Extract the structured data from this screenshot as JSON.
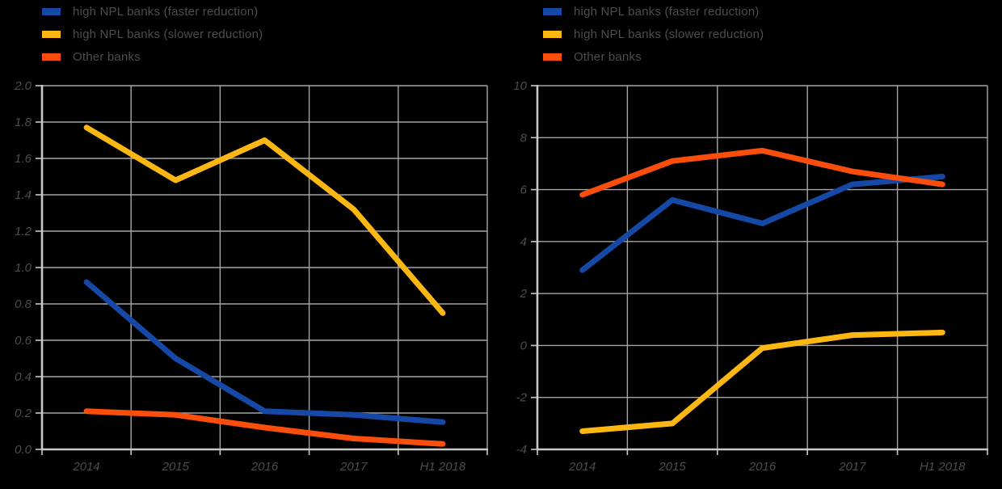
{
  "figure": {
    "background": "#000000",
    "grid_color": "#a6a6a6",
    "axis_color": "#c9c9c9",
    "text_color": "#4d4d4d"
  },
  "chart_data": [
    {
      "type": "line",
      "title": "",
      "categories": [
        "2014",
        "2015",
        "2016",
        "2017",
        "H1 2018"
      ],
      "series": [
        {
          "name": "high NPL banks (faster reduction)",
          "color": "#1649a6",
          "values": [
            0.92,
            0.5,
            0.21,
            0.19,
            0.15
          ]
        },
        {
          "name": "high NPL banks (slower reduction)",
          "color": "#fdb713",
          "values": [
            1.77,
            1.48,
            1.7,
            1.32,
            0.75
          ]
        },
        {
          "name": "Other banks",
          "color": "#fb4d0c",
          "values": [
            0.21,
            0.19,
            0.12,
            0.06,
            0.03
          ]
        }
      ],
      "ylim": [
        0.0,
        2.0
      ],
      "ytick_step": 0.2,
      "ytick_labels": [
        "2.0",
        "1.8",
        "1.6",
        "1.4",
        "1.2",
        "1.0",
        "0.8",
        "0.6",
        "0.4",
        "0.2",
        "0.0"
      ],
      "xlabel": "",
      "ylabel": "",
      "grid": true,
      "legend_position": "top-left"
    },
    {
      "type": "line",
      "title": "",
      "categories": [
        "2014",
        "2015",
        "2016",
        "2017",
        "H1 2018"
      ],
      "series": [
        {
          "name": "high NPL banks (faster reduction)",
          "color": "#1649a6",
          "values": [
            2.9,
            5.6,
            4.7,
            6.2,
            6.5
          ]
        },
        {
          "name": "high NPL banks (slower reduction)",
          "color": "#fdb713",
          "values": [
            -3.3,
            -3.0,
            -0.1,
            0.4,
            0.5
          ]
        },
        {
          "name": "Other banks",
          "color": "#fb4d0c",
          "values": [
            5.8,
            7.1,
            7.5,
            6.7,
            6.2
          ]
        }
      ],
      "ylim": [
        -4,
        10
      ],
      "ytick_step": 2,
      "ytick_labels": [
        "10",
        "8",
        "6",
        "4",
        "2",
        "0",
        "-2",
        "-4"
      ],
      "xlabel": "",
      "ylabel": "",
      "grid": true,
      "legend_position": "top-left"
    }
  ]
}
